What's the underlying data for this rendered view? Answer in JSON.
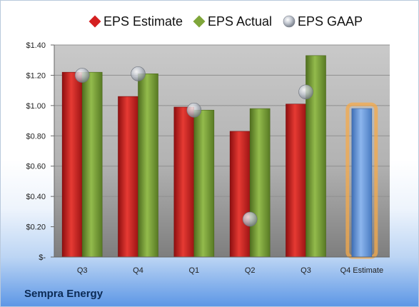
{
  "company": "Sempra Energy",
  "colors": {
    "estimate": "#d41f20",
    "actual": "#7fa63a",
    "gaap": "#b8bfcc",
    "estimate_future": "#6d9ee0",
    "glow": "#f6a94a"
  },
  "chart_data": {
    "type": "bar",
    "categories": [
      "Q3",
      "Q4",
      "Q1",
      "Q2",
      "Q3",
      "Q4 Estimate"
    ],
    "series": [
      {
        "name": "EPS Estimate",
        "values": [
          1.22,
          1.06,
          0.99,
          0.83,
          1.01,
          null
        ]
      },
      {
        "name": "EPS Actual",
        "values": [
          1.22,
          1.21,
          0.97,
          0.98,
          1.33,
          null
        ]
      },
      {
        "name": "EPS GAAP",
        "type": "scatter",
        "values": [
          1.2,
          1.21,
          0.97,
          0.25,
          1.09,
          null
        ]
      }
    ],
    "forecast": {
      "category": "Q4 Estimate",
      "value": 0.98
    },
    "ylim": [
      0,
      1.4
    ],
    "yticks": [
      {
        "value": 0,
        "label": "$-"
      },
      {
        "value": 0.2,
        "label": "$0.20"
      },
      {
        "value": 0.4,
        "label": "$0.40"
      },
      {
        "value": 0.6,
        "label": "$0.60"
      },
      {
        "value": 0.8,
        "label": "$0.80"
      },
      {
        "value": 1.0,
        "label": "$1.00"
      },
      {
        "value": 1.2,
        "label": "$1.20"
      },
      {
        "value": 1.4,
        "label": "$1.40"
      }
    ],
    "legend_position": "top",
    "grid": true
  }
}
